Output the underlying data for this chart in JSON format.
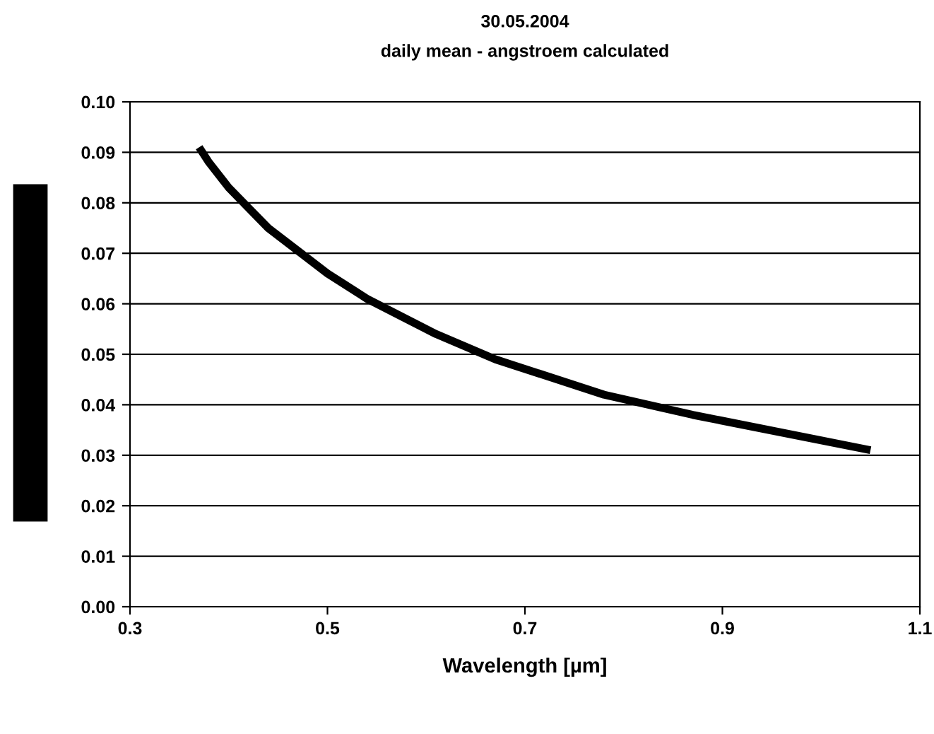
{
  "chart_data": {
    "type": "line",
    "title": "30.05.2004",
    "subtitle": "daily mean - angstroem calculated",
    "xlabel": "Wavelength [µm]",
    "series": [
      {
        "color": "#000000",
        "x": [
          0.37,
          0.38,
          0.4,
          0.44,
          0.5,
          0.54,
          0.61,
          0.67,
          0.78,
          0.87,
          1.05
        ],
        "values": [
          0.091,
          0.088,
          0.083,
          0.075,
          0.066,
          0.061,
          0.054,
          0.049,
          0.042,
          0.038,
          0.031
        ]
      }
    ],
    "xlim": [
      0.3,
      1.1
    ],
    "xticks": [
      0.3,
      0.5,
      0.7,
      0.9,
      1.1
    ],
    "ylim": [
      0,
      0.1
    ],
    "yticks": [
      {
        "value": 0,
        "label": "0.00"
      },
      {
        "value": 0.01,
        "label": "0.01"
      },
      {
        "value": 0.02,
        "label": "0.02"
      },
      {
        "value": 0.03,
        "label": "0.03"
      },
      {
        "value": 0.04,
        "label": "0.04"
      },
      {
        "value": 0.05,
        "label": "0.05"
      },
      {
        "value": 0.06,
        "label": "0.06"
      },
      {
        "value": 0.07,
        "label": "0.07"
      },
      {
        "value": 0.08,
        "label": "0.08"
      },
      {
        "value": 0.09,
        "label": "0.09"
      },
      {
        "value": 0.1,
        "label": "0.10"
      }
    ],
    "grid": "y",
    "legend": false,
    "marker": "none",
    "line_style": "solid"
  }
}
